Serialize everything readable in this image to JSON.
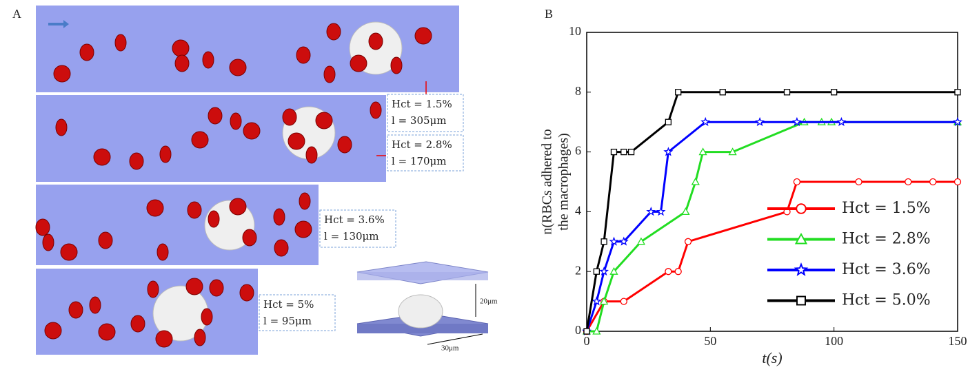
{
  "panel_labels": [
    "A",
    "B"
  ],
  "panel_a": {
    "annotations": [
      [
        "Hct = 1.5%",
        "l = 305μm"
      ],
      [
        "Hct = 2.8%",
        "l = 170μm"
      ],
      [
        "Hct = 3.6%",
        "l = 130μm"
      ],
      [
        "Hct = 5%",
        "l = 95μm"
      ]
    ],
    "inset_labels": [
      "20μm",
      "30μm"
    ]
  },
  "chart_data": {
    "type": "line",
    "x_label": "t(s)",
    "y_label": [
      "n(RBCs adhered to",
      "the macrophages)"
    ],
    "xlim": [
      0,
      150
    ],
    "xticks": [
      0,
      50,
      100,
      150
    ],
    "ylim": [
      0,
      10
    ],
    "yticks": [
      0,
      2,
      4,
      6,
      8,
      10
    ],
    "legend": "lower right",
    "series": [
      {
        "name": "Hct = 1.5%",
        "color": "#ff0000",
        "marker": "circle",
        "x": [
          0,
          7,
          15,
          33,
          37,
          41,
          81,
          85,
          110,
          130,
          140,
          150
        ],
        "values": [
          0,
          1,
          1,
          2,
          2,
          3,
          4,
          5,
          5,
          5,
          5,
          5
        ]
      },
      {
        "name": "Hct = 2.8%",
        "color": "#22dd22",
        "marker": "triangle",
        "x": [
          0,
          4,
          7,
          11,
          22,
          40,
          44,
          47,
          59,
          88,
          95,
          99,
          150
        ],
        "values": [
          0,
          0,
          1,
          2,
          3,
          4,
          5,
          6,
          6,
          7,
          7,
          7,
          7
        ]
      },
      {
        "name": "Hct = 3.6%",
        "color": "#0000ff",
        "marker": "star",
        "x": [
          0,
          4,
          7,
          11,
          15,
          26,
          30,
          33,
          48,
          70,
          85,
          103,
          150
        ],
        "values": [
          0,
          1,
          2,
          3,
          3,
          4,
          4,
          6,
          7,
          7,
          7,
          7,
          7
        ]
      },
      {
        "name": "Hct = 5.0%",
        "color": "#000000",
        "marker": "square",
        "x": [
          0,
          4,
          7,
          11,
          15,
          18,
          33,
          37,
          55,
          81,
          100,
          150
        ],
        "values": [
          0,
          2,
          3,
          6,
          6,
          6,
          7,
          8,
          8,
          8,
          8,
          8
        ]
      }
    ]
  }
}
